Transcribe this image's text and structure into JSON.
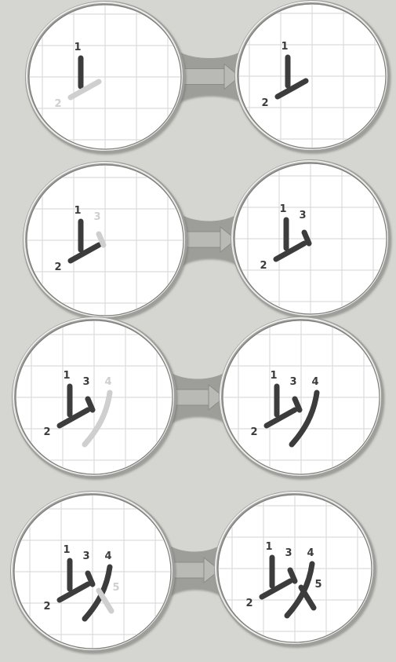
{
  "title": "",
  "character": "以",
  "colors": {
    "background": "#d5d6d1",
    "frame": "#9d9e9a",
    "frame_highlight": "#ececea",
    "panel": "#ffffff",
    "grid": "#dcdcdc",
    "stroke_done": "#3c3c3c",
    "stroke_new": "#cfcfcf"
  },
  "steps": [
    {
      "step": 1,
      "before_strokes": [
        {
          "id": "1",
          "state": "done"
        },
        {
          "id": "2",
          "state": "new"
        }
      ],
      "after_strokes": [
        {
          "id": "1",
          "state": "done"
        },
        {
          "id": "2",
          "state": "done"
        }
      ]
    },
    {
      "step": 2,
      "before_strokes": [
        {
          "id": "1",
          "state": "done"
        },
        {
          "id": "2",
          "state": "done"
        },
        {
          "id": "3",
          "state": "new"
        }
      ],
      "after_strokes": [
        {
          "id": "1",
          "state": "done"
        },
        {
          "id": "2",
          "state": "done"
        },
        {
          "id": "3",
          "state": "done"
        }
      ]
    },
    {
      "step": 3,
      "before_strokes": [
        {
          "id": "1",
          "state": "done"
        },
        {
          "id": "2",
          "state": "done"
        },
        {
          "id": "3",
          "state": "done"
        },
        {
          "id": "4",
          "state": "new"
        }
      ],
      "after_strokes": [
        {
          "id": "1",
          "state": "done"
        },
        {
          "id": "2",
          "state": "done"
        },
        {
          "id": "3",
          "state": "done"
        },
        {
          "id": "4",
          "state": "done"
        }
      ]
    },
    {
      "step": 4,
      "before_strokes": [
        {
          "id": "1",
          "state": "done"
        },
        {
          "id": "2",
          "state": "done"
        },
        {
          "id": "3",
          "state": "done"
        },
        {
          "id": "4",
          "state": "done"
        },
        {
          "id": "5",
          "state": "new"
        }
      ],
      "after_strokes": [
        {
          "id": "1",
          "state": "done"
        },
        {
          "id": "2",
          "state": "done"
        },
        {
          "id": "3",
          "state": "done"
        },
        {
          "id": "4",
          "state": "done"
        },
        {
          "id": "5",
          "state": "done"
        }
      ]
    }
  ]
}
